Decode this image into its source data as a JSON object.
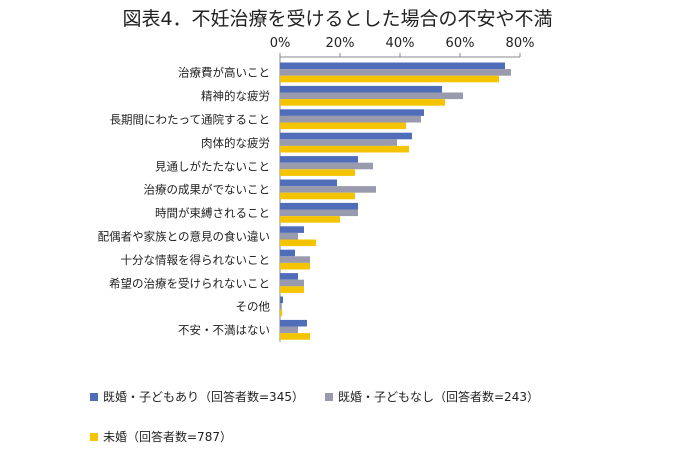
{
  "chart_data": {
    "type": "bar",
    "orientation": "horizontal",
    "title": "図表4．不妊治療を受けるとした場合の不安や不満",
    "categories": [
      "治療費が高いこと",
      "精神的な疲労",
      "長期間にわたって通院すること",
      "肉体的な疲労",
      "見通しがたたないこと",
      "治療の成果がでないこと",
      "時間が束縛されること",
      "配偶者や家族との意見の食い違い",
      "十分な情報を得られないこと",
      "希望の治療を受けられないこと",
      "その他",
      "不安・不満はない"
    ],
    "series": [
      {
        "name": "既婚・子どもあり（回答者数=345）",
        "color": "#4F6DB8",
        "values": [
          75,
          54,
          48,
          44,
          26,
          19,
          26,
          8,
          5,
          6,
          1,
          9
        ]
      },
      {
        "name": "既婚・子どもなし（回答者数=243）",
        "color": "#9A9AAE",
        "values": [
          77,
          61,
          47,
          39,
          31,
          32,
          26,
          6,
          10,
          8,
          0.6,
          6
        ]
      },
      {
        "name": "未婚（回答者数=787）",
        "color": "#F5C400",
        "values": [
          73,
          55,
          42,
          43,
          25,
          25,
          20,
          12,
          10,
          8,
          0.7,
          10
        ]
      }
    ],
    "xlim": [
      0,
      80
    ],
    "xticks": [
      "0%",
      "20%",
      "40%",
      "60%",
      "80%"
    ],
    "axis_position": "top",
    "grid": false,
    "legend": "bottom"
  }
}
